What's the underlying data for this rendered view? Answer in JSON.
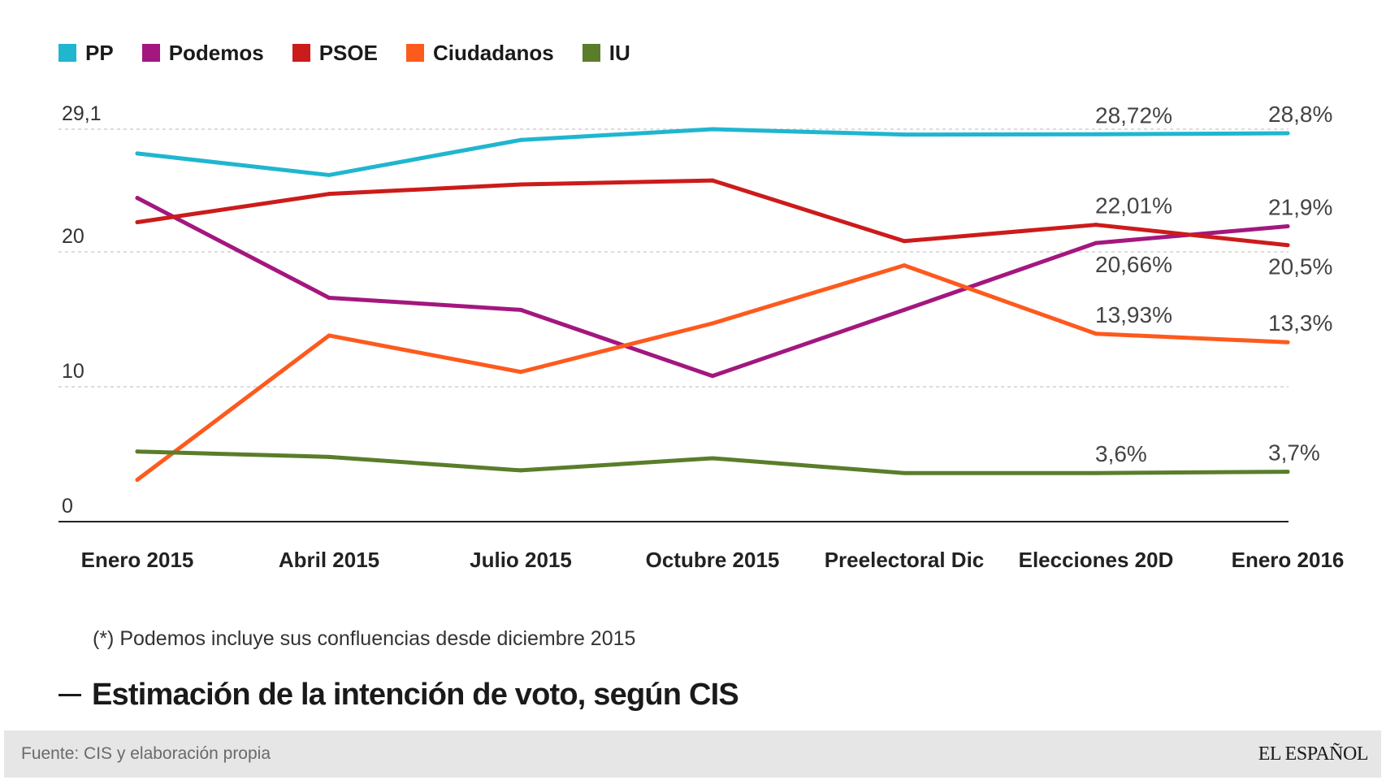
{
  "chart_data": {
    "type": "line",
    "title": "Estimación de la intención de voto, según CIS",
    "xlabel": "",
    "ylabel": "",
    "categories": [
      "Enero 2015",
      "Abril 2015",
      "Julio 2015",
      "Octubre 2015",
      "Preelectoral Dic",
      "Elecciones 20D",
      "Enero 2016"
    ],
    "series": [
      {
        "name": "PP",
        "color": "#1fb6cf",
        "values": [
          27.3,
          25.7,
          28.3,
          29.1,
          28.7,
          28.72,
          28.8
        ]
      },
      {
        "name": "Podemos",
        "color": "#a3177f",
        "values": [
          24.0,
          16.6,
          15.7,
          10.8,
          15.7,
          20.66,
          21.9
        ]
      },
      {
        "name": "PSOE",
        "color": "#cc1b1b",
        "values": [
          22.2,
          24.3,
          25.0,
          25.3,
          20.8,
          22.01,
          20.5
        ]
      },
      {
        "name": "Ciudadanos",
        "color": "#fd5a1e",
        "values": [
          3.1,
          13.8,
          11.1,
          14.7,
          19.0,
          13.93,
          13.3
        ]
      },
      {
        "name": "IU",
        "color": "#5a7d2a",
        "values": [
          5.2,
          4.8,
          3.8,
          4.7,
          3.6,
          3.6,
          3.7
        ]
      }
    ],
    "ylim": [
      0,
      29.1
    ],
    "yticks": [
      {
        "value": 29.1,
        "label": "29,1"
      },
      {
        "value": 20,
        "label": "20"
      },
      {
        "value": 10,
        "label": "10"
      },
      {
        "value": 0,
        "label": "0"
      }
    ],
    "grid": true,
    "legend_position": "top-left",
    "annotations": [
      {
        "series": "PP",
        "category": "Elecciones 20D",
        "text": "28,72%",
        "placement": "above"
      },
      {
        "series": "PP",
        "category": "Enero 2016",
        "text": "28,8%",
        "placement": "above"
      },
      {
        "series": "PSOE",
        "category": "Elecciones 20D",
        "text": "22,01%",
        "placement": "above"
      },
      {
        "series": "Podemos",
        "category": "Enero 2016",
        "text": "21,9%",
        "placement": "above"
      },
      {
        "series": "Podemos",
        "category": "Elecciones 20D",
        "text": "20,66%",
        "placement": "below"
      },
      {
        "series": "PSOE",
        "category": "Enero 2016",
        "text": "20,5%",
        "placement": "below"
      },
      {
        "series": "Ciudadanos",
        "category": "Elecciones 20D",
        "text": "13,93%",
        "placement": "above"
      },
      {
        "series": "Ciudadanos",
        "category": "Enero 2016",
        "text": "13,3%",
        "placement": "above"
      },
      {
        "series": "IU",
        "category": "Elecciones 20D",
        "text": "3,6%",
        "placement": "above"
      },
      {
        "series": "IU",
        "category": "Enero 2016",
        "text": "3,7%",
        "placement": "above"
      }
    ],
    "footnote": "(*) Podemos incluye sus confluencias desde diciembre 2015"
  },
  "source": "Fuente: CIS y elaboración propia",
  "brand": "EL ESPAÑOL",
  "colors": {
    "text": "#1a1a1a",
    "footer_background": "#e6e6e6",
    "grid": "#d0d0d0"
  }
}
